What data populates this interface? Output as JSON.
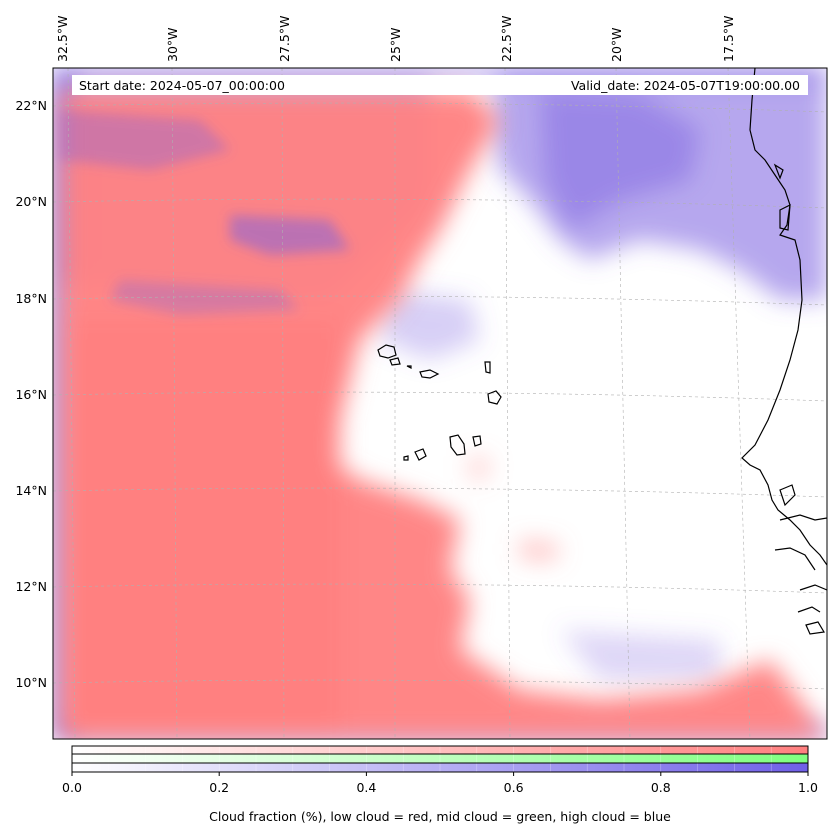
{
  "map": {
    "start_date_label": "Start date: 2024-05-07_00:00:00",
    "valid_date_label": "Valid_date: 2024-05-07T19:00:00.00",
    "colors": {
      "low_cloud": "#ff7f7f",
      "mid_cloud": "#7fff7f",
      "high_cloud": "#7f7fff",
      "high_cloud_dense": "#7a5fe0",
      "background": "#ffffff",
      "gridline": "#b0b0b0",
      "coastline": "#000000"
    },
    "lon_labels": [
      "32.5°W",
      "30°W",
      "27.5°W",
      "25°W",
      "22.5°W",
      "20°W",
      "17.5°W"
    ],
    "lat_labels": [
      "22°N",
      "20°N",
      "18°N",
      "16°N",
      "14°N",
      "12°N",
      "10°N"
    ],
    "grid": true,
    "extent": {
      "lon_min": -32.5,
      "lon_max": -15.5,
      "lat_min": 8.9,
      "lat_max": 22.8
    }
  },
  "colorbar": {
    "tick_labels": [
      "0.0",
      "0.2",
      "0.4",
      "0.6",
      "0.8",
      "1.0"
    ],
    "tick_values": [
      0.0,
      0.2,
      0.4,
      0.6,
      0.8,
      1.0
    ],
    "range": [
      0.0,
      1.0
    ],
    "label": "Cloud fraction (%), low cloud = red, mid cloud = green, high cloud = blue",
    "bands": [
      "low cloud",
      "mid cloud",
      "high cloud"
    ]
  }
}
